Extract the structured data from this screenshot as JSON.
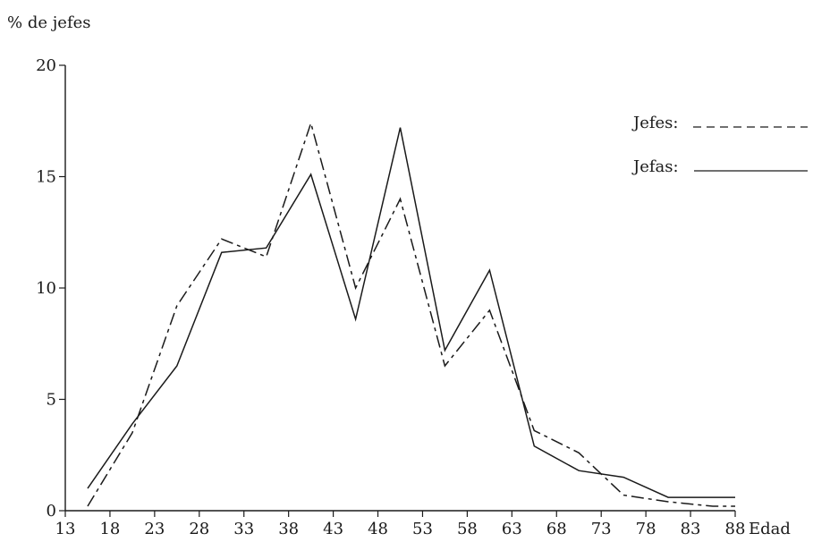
{
  "chart_data": {
    "type": "line",
    "title": "",
    "ylabel": "% de jefes",
    "xlabel": "Edad",
    "x_ticks": [
      13,
      18,
      23,
      28,
      33,
      38,
      43,
      48,
      53,
      58,
      63,
      68,
      73,
      78,
      83,
      88
    ],
    "y_ticks": [
      0,
      5,
      10,
      15,
      20
    ],
    "xlim": [
      13,
      88
    ],
    "ylim": [
      0,
      20
    ],
    "grid": false,
    "legend_position": "top-right",
    "series": [
      {
        "name": "Jefes:",
        "style": "dashed",
        "color": "#1a1a1a",
        "x": [
          15.5,
          20.5,
          25.5,
          30.5,
          35.5,
          40.5,
          45.5,
          50.5,
          55.5,
          60.5,
          65.5,
          70.5,
          75.5,
          80.5,
          85.5,
          88
        ],
        "y": [
          0.2,
          3.5,
          9.2,
          12.2,
          11.4,
          17.4,
          10.0,
          14.0,
          6.5,
          9.0,
          3.6,
          2.6,
          0.7,
          0.4,
          0.2,
          0.2
        ]
      },
      {
        "name": "Jefas:",
        "style": "solid",
        "color": "#1a1a1a",
        "x": [
          15.5,
          20.5,
          25.5,
          30.5,
          35.5,
          40.5,
          45.5,
          50.5,
          55.5,
          60.5,
          65.5,
          70.5,
          75.5,
          80.5,
          85.5,
          88
        ],
        "y": [
          1.0,
          3.9,
          6.5,
          11.6,
          11.8,
          15.1,
          8.6,
          17.2,
          7.2,
          10.8,
          2.9,
          1.8,
          1.5,
          0.6,
          0.6,
          0.6
        ]
      }
    ]
  }
}
